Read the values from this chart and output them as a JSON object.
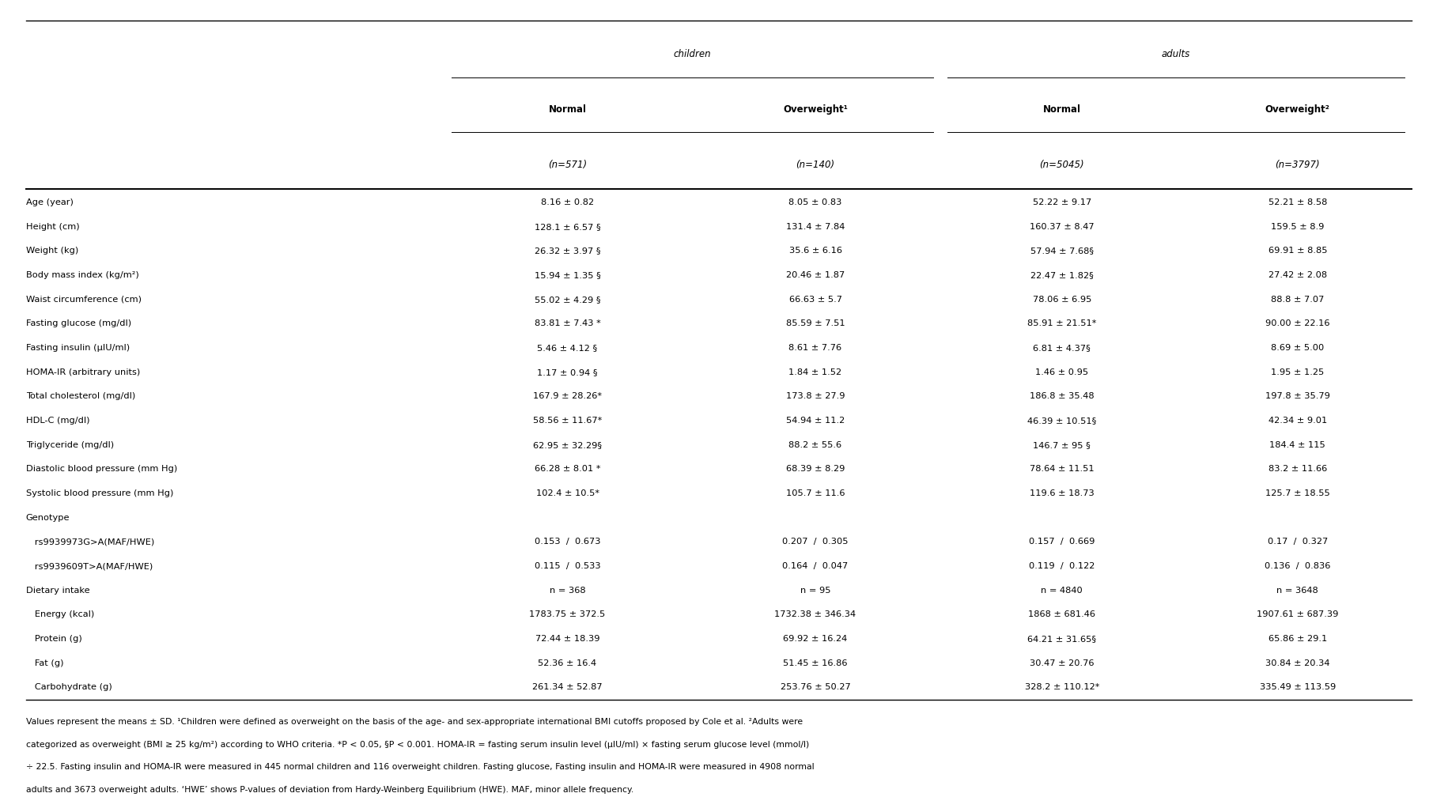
{
  "col_headers": [
    "",
    "Normal",
    "Overweight¹",
    "Normal",
    "Overweight²"
  ],
  "col_subheaders": [
    "",
    "(n=571)",
    "(n=140)",
    "(n=5045)",
    "(n=3797)"
  ],
  "rows": [
    {
      "label": "Age (year)",
      "indent": false,
      "values": [
        "8.16 ± 0.82",
        "8.05 ± 0.83",
        "52.22 ± 9.17",
        "52.21 ± 8.58"
      ],
      "is_section": false
    },
    {
      "label": "Height (cm)",
      "indent": false,
      "values": [
        "128.1 ± 6.57 §",
        "131.4 ± 7.84",
        "160.37 ± 8.47",
        "159.5 ± 8.9"
      ],
      "is_section": false
    },
    {
      "label": "Weight (kg)",
      "indent": false,
      "values": [
        "26.32 ± 3.97 §",
        "35.6 ± 6.16",
        "57.94 ± 7.68§",
        "69.91 ± 8.85"
      ],
      "is_section": false
    },
    {
      "label": "Body mass index (kg/m²)",
      "indent": false,
      "values": [
        "15.94 ± 1.35 §",
        "20.46 ± 1.87",
        "22.47 ± 1.82§",
        "27.42 ± 2.08"
      ],
      "is_section": false
    },
    {
      "label": "Waist circumference (cm)",
      "indent": false,
      "values": [
        "55.02 ± 4.29 §",
        "66.63 ± 5.7",
        "78.06 ± 6.95",
        "88.8 ± 7.07"
      ],
      "is_section": false
    },
    {
      "label": "Fasting glucose (mg/dl)",
      "indent": false,
      "values": [
        "83.81 ± 7.43 *",
        "85.59 ± 7.51",
        "85.91 ± 21.51*",
        "90.00 ± 22.16"
      ],
      "is_section": false
    },
    {
      "label": "Fasting insulin (μIU/ml)",
      "indent": false,
      "values": [
        "5.46 ± 4.12 §",
        "8.61 ± 7.76",
        "6.81 ± 4.37§",
        "8.69 ± 5.00"
      ],
      "is_section": false
    },
    {
      "label": "HOMA-IR (arbitrary units)",
      "indent": false,
      "values": [
        "1.17 ± 0.94 §",
        "1.84 ± 1.52",
        "1.46 ± 0.95",
        "1.95 ± 1.25"
      ],
      "is_section": false
    },
    {
      "label": "Total cholesterol (mg/dl)",
      "indent": false,
      "values": [
        "167.9 ± 28.26*",
        "173.8 ± 27.9",
        "186.8 ± 35.48",
        "197.8 ± 35.79"
      ],
      "is_section": false
    },
    {
      "label": "HDL-C (mg/dl)",
      "indent": false,
      "values": [
        "58.56 ± 11.67*",
        "54.94 ± 11.2",
        "46.39 ± 10.51§",
        "42.34 ± 9.01"
      ],
      "is_section": false
    },
    {
      "label": "Triglyceride (mg/dl)",
      "indent": false,
      "values": [
        "62.95 ± 32.29§",
        "88.2 ± 55.6",
        "146.7 ± 95 §",
        "184.4 ± 115"
      ],
      "is_section": false
    },
    {
      "label": "Diastolic blood pressure (mm Hg)",
      "indent": false,
      "values": [
        "66.28 ± 8.01 *",
        "68.39 ± 8.29",
        "78.64 ± 11.51",
        "83.2 ± 11.66"
      ],
      "is_section": false
    },
    {
      "label": "Systolic blood pressure (mm Hg)",
      "indent": false,
      "values": [
        "102.4 ± 10.5*",
        "105.7 ± 11.6",
        "119.6 ± 18.73",
        "125.7 ± 18.55"
      ],
      "is_section": false
    },
    {
      "label": "Genotype",
      "indent": false,
      "values": [
        "",
        "",
        "",
        ""
      ],
      "is_section": true
    },
    {
      "label": "   rs9939973G>A(MAF/HWE)",
      "indent": true,
      "values": [
        "0.153  /  0.673",
        "0.207  /  0.305",
        "0.157  /  0.669",
        "0.17  /  0.327"
      ],
      "is_section": false
    },
    {
      "label": "   rs9939609T>A(MAF/HWE)",
      "indent": true,
      "values": [
        "0.115  /  0.533",
        "0.164  /  0.047",
        "0.119  /  0.122",
        "0.136  /  0.836"
      ],
      "is_section": false
    },
    {
      "label": "Dietary intake",
      "indent": false,
      "values": [
        "n = 368",
        "n = 95",
        "n = 4840",
        "n = 3648"
      ],
      "is_section": true
    },
    {
      "label": "   Energy (kcal)",
      "indent": true,
      "values": [
        "1783.75 ± 372.5",
        "1732.38 ± 346.34",
        "1868 ± 681.46",
        "1907.61 ± 687.39"
      ],
      "is_section": false
    },
    {
      "label": "   Protein (g)",
      "indent": true,
      "values": [
        "72.44 ± 18.39",
        "69.92 ± 16.24",
        "64.21 ± 31.65§",
        "65.86 ± 29.1"
      ],
      "is_section": false
    },
    {
      "label": "   Fat (g)",
      "indent": true,
      "values": [
        "52.36 ± 16.4",
        "51.45 ± 16.86",
        "30.47 ± 20.76",
        "30.84 ± 20.34"
      ],
      "is_section": false
    },
    {
      "label": "   Carbohydrate (g)",
      "indent": true,
      "values": [
        "261.34 ± 52.87",
        "253.76 ± 50.27",
        "328.2 ± 110.12*",
        "335.49 ± 113.59"
      ],
      "is_section": false
    }
  ],
  "footnote_lines": [
    "Values represent the means ± SD. ¹Children were defined as overweight on the basis of the age- and sex-appropriate international BMI cutoffs proposed by Cole et al. ²Adults were",
    "categorized as overweight (BMI ≥ 25 kg/m²) according to WHO criteria. *P < 0.05, §P < 0.001. HOMA-IR = fasting serum insulin level (μIU/ml) × fasting serum glucose level (mmol/l)",
    "÷ 22.5. Fasting insulin and HOMA-IR were measured in 445 normal children and 116 overweight children. Fasting glucose, Fasting insulin and HOMA-IR were measured in 4908 normal",
    "adults and 3673 overweight adults. ‘HWE’ shows P-values of deviation from Hardy-Weinberg Equilibrium (HWE). MAF, minor allele frequency."
  ],
  "font_size": 8.2,
  "header_font_size": 8.5,
  "footnote_font_size": 7.8
}
